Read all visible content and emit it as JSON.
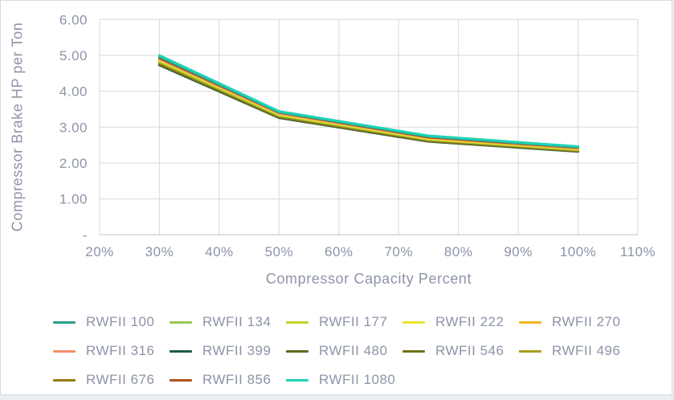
{
  "chart": {
    "y_axis_title": "Compressor Brake HP per Ton",
    "x_axis_title": "Compressor Capacity Percent",
    "y_tick_labels": [
      "6.00",
      "5.00",
      "4.00",
      "3.00",
      "2.00",
      "1.00",
      "-"
    ],
    "y_tick_values": [
      6,
      5,
      4,
      3,
      2,
      1,
      0
    ],
    "x_tick_labels": [
      "20%",
      "30%",
      "40%",
      "50%",
      "60%",
      "70%",
      "80%",
      "90%",
      "100%",
      "110%"
    ],
    "x_tick_values": [
      20,
      30,
      40,
      50,
      60,
      70,
      80,
      90,
      100,
      110
    ]
  },
  "chart_data": {
    "type": "line",
    "title": "",
    "xlabel": "Compressor Capacity Percent",
    "ylabel": "Compressor Brake HP per Ton",
    "x": [
      30,
      50,
      75,
      100
    ],
    "x_unit": "percent of capacity",
    "xlim": [
      20,
      110
    ],
    "ylim": [
      0,
      6
    ],
    "grid": true,
    "legend_position": "bottom",
    "series": [
      {
        "name": "RWFII 100",
        "color": "#2d9b8c",
        "values": [
          4.96,
          3.42,
          2.74,
          2.44
        ]
      },
      {
        "name": "RWFII 134",
        "color": "#9cc74d",
        "values": [
          4.83,
          3.33,
          2.66,
          2.37
        ]
      },
      {
        "name": "RWFII 177",
        "color": "#c4d32a",
        "values": [
          4.85,
          3.35,
          2.67,
          2.38
        ]
      },
      {
        "name": "RWFII 222",
        "color": "#ede433",
        "values": [
          4.87,
          3.36,
          2.68,
          2.39
        ]
      },
      {
        "name": "RWFII 270",
        "color": "#eeb620",
        "values": [
          4.89,
          3.38,
          2.7,
          2.4
        ]
      },
      {
        "name": "RWFII 316",
        "color": "#f0916b",
        "values": [
          4.91,
          3.39,
          2.71,
          2.42
        ]
      },
      {
        "name": "RWFII 399",
        "color": "#1c5c4b",
        "values": [
          4.73,
          3.26,
          2.6,
          2.32
        ]
      },
      {
        "name": "RWFII 480",
        "color": "#5c6b22",
        "values": [
          4.75,
          3.27,
          2.61,
          2.33
        ]
      },
      {
        "name": "RWFII 546",
        "color": "#6f701b",
        "values": [
          4.77,
          3.29,
          2.62,
          2.34
        ]
      },
      {
        "name": "RWFII 496",
        "color": "#a79d1e",
        "values": [
          4.81,
          3.32,
          2.65,
          2.36
        ]
      },
      {
        "name": "RWFII 676",
        "color": "#96790f",
        "values": [
          4.79,
          3.3,
          2.63,
          2.35
        ]
      },
      {
        "name": "RWFII 856",
        "color": "#b05020",
        "values": [
          4.93,
          3.41,
          2.72,
          2.43
        ]
      },
      {
        "name": "RWFII 1080",
        "color": "#1ed3b4",
        "values": [
          5.0,
          3.44,
          2.76,
          2.46
        ]
      }
    ]
  },
  "colors": {
    "background": "#ffffff",
    "page_background": "#e9eef3",
    "frame_border": "#d8dbdf",
    "gridline": "#d9d9d9",
    "axis_line": "#c1c5c9",
    "text": "#8d94a8"
  }
}
